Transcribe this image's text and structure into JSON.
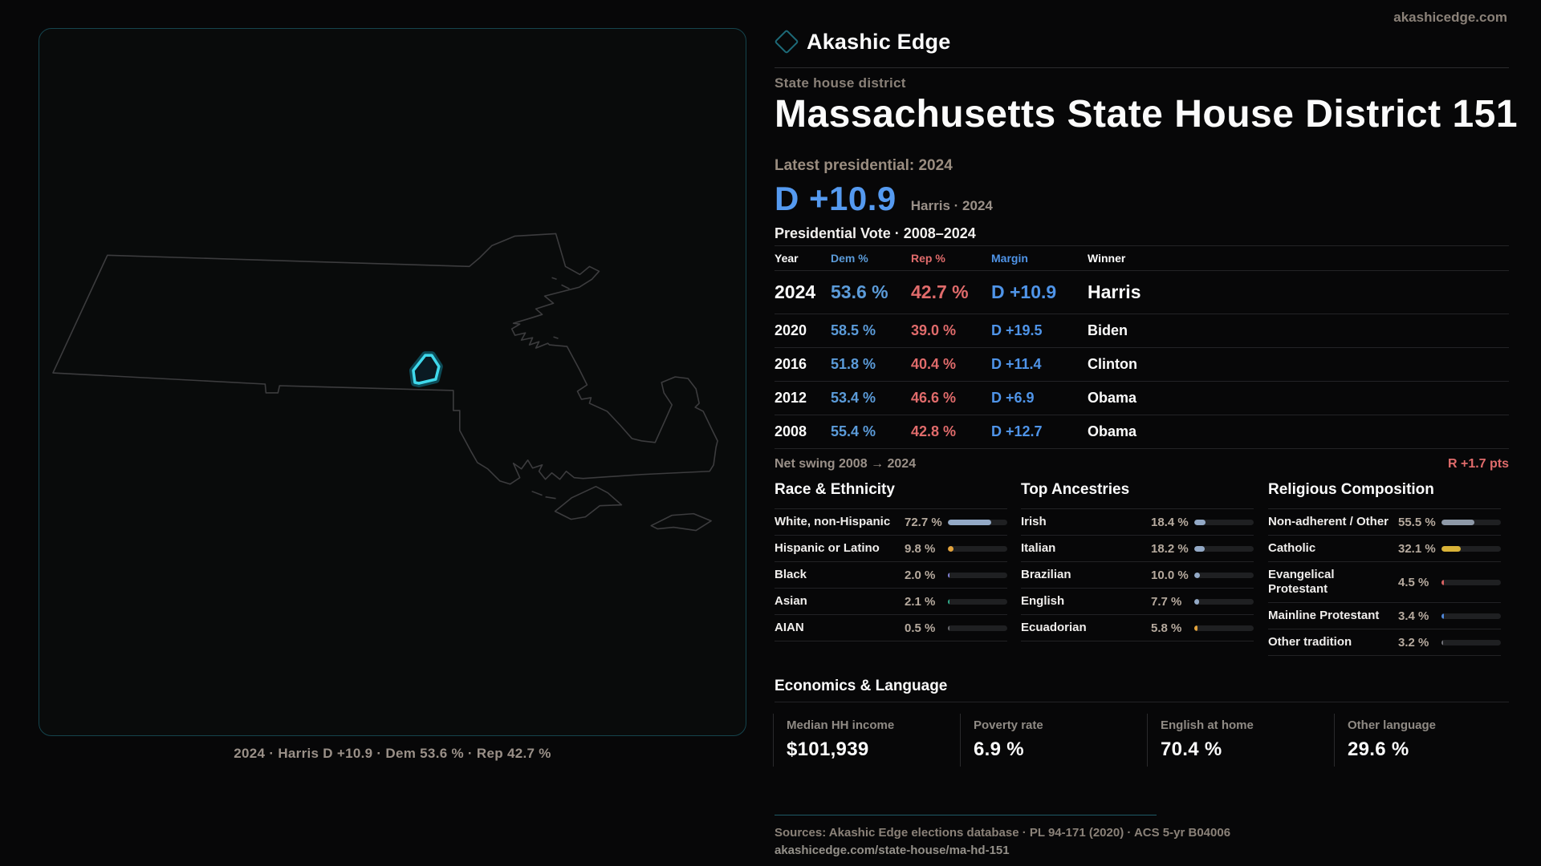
{
  "brand": {
    "name": "Akashic Edge",
    "site": "akashicedge.com",
    "accent": "#1d6a78"
  },
  "header": {
    "kicker": "State house district",
    "title": "Massachusetts State House District 151"
  },
  "hero": {
    "latest_label": "Latest presidential: 2024",
    "margin": "D +10.9",
    "margin_color": "#559af0",
    "note": "Harris · 2024"
  },
  "vote_table": {
    "title": "Presidential Vote · 2008–2024",
    "columns": [
      "Year",
      "Dem %",
      "Rep %",
      "Margin",
      "Winner"
    ],
    "rows": [
      {
        "year": "2024",
        "dem": "53.6 %",
        "rep": "42.7 %",
        "margin": "D +10.9",
        "winner": "Harris",
        "emphasis": true
      },
      {
        "year": "2020",
        "dem": "58.5 %",
        "rep": "39.0 %",
        "margin": "D +19.5",
        "winner": "Biden",
        "emphasis": false
      },
      {
        "year": "2016",
        "dem": "51.8 %",
        "rep": "40.4 %",
        "margin": "D +11.4",
        "winner": "Clinton",
        "emphasis": false
      },
      {
        "year": "2012",
        "dem": "53.4 %",
        "rep": "46.6 %",
        "margin": "D +6.9",
        "winner": "Obama",
        "emphasis": false
      },
      {
        "year": "2008",
        "dem": "55.4 %",
        "rep": "42.8 %",
        "margin": "D +12.7",
        "winner": "Obama",
        "emphasis": false
      }
    ],
    "dem_color": "#5b9bd9",
    "rep_color": "#e06b6b",
    "margin_color": "#4f94e8"
  },
  "net_swing": {
    "label": "Net swing 2008 → 2024",
    "value": "R +1.7 pts",
    "value_color": "#e06b6b"
  },
  "demographics": {
    "race": {
      "title": "Race & Ethnicity",
      "rows": [
        {
          "label": "White, non-Hispanic",
          "value": "72.7 %",
          "pct": 72.7,
          "color": "#93a9c6"
        },
        {
          "label": "Hispanic or Latino",
          "value": "9.8 %",
          "pct": 9.8,
          "color": "#e3a33c"
        },
        {
          "label": "Black",
          "value": "2.0 %",
          "pct": 2.0,
          "color": "#8383d9"
        },
        {
          "label": "Asian",
          "value": "2.1 %",
          "pct": 2.1,
          "color": "#2fae8c"
        },
        {
          "label": "AIAN",
          "value": "0.5 %",
          "pct": 0.5,
          "color": "#6a6a6e"
        }
      ]
    },
    "ancestries": {
      "title": "Top Ancestries",
      "rows": [
        {
          "label": "Irish",
          "value": "18.4 %",
          "pct": 18.4,
          "color": "#93a9c6"
        },
        {
          "label": "Italian",
          "value": "18.2 %",
          "pct": 18.2,
          "color": "#93a9c6"
        },
        {
          "label": "Brazilian",
          "value": "10.0 %",
          "pct": 10.0,
          "color": "#93a9c6"
        },
        {
          "label": "English",
          "value": "7.7 %",
          "pct": 7.7,
          "color": "#93a9c6"
        },
        {
          "label": "Ecuadorian",
          "value": "5.8 %",
          "pct": 5.8,
          "color": "#e3a33c"
        }
      ]
    },
    "religion": {
      "title": "Religious Composition",
      "rows": [
        {
          "label": "Non-adherent / Other",
          "value": "55.5 %",
          "pct": 55.5,
          "color": "#8e99a8"
        },
        {
          "label": "Catholic",
          "value": "32.1 %",
          "pct": 32.1,
          "color": "#d9b338"
        },
        {
          "label": "Evangelical Protestant",
          "value": "4.5 %",
          "pct": 4.5,
          "color": "#d96262"
        },
        {
          "label": "Mainline Protestant",
          "value": "3.4 %",
          "pct": 3.4,
          "color": "#4f87d9"
        },
        {
          "label": "Other tradition",
          "value": "3.2 %",
          "pct": 3.2,
          "color": "#73737a"
        }
      ]
    }
  },
  "economics": {
    "title": "Economics & Language",
    "stats": [
      {
        "label": "Median HH income",
        "value": "$101,939"
      },
      {
        "label": "Poverty rate",
        "value": "6.9 %"
      },
      {
        "label": "English at home",
        "value": "70.4 %"
      },
      {
        "label": "Other language",
        "value": "29.6 %"
      }
    ]
  },
  "footer": {
    "sources": "Sources: Akashic Edge elections database · PL 94-171 (2020) · ACS 5-yr B04006",
    "permalink": "akashicedge.com/state-house/ma-hd-151"
  },
  "map": {
    "caption": "2024 · Harris D +10.9 · Dem 53.6 % · Rep 42.7 %",
    "district_color": "#3fd9ec",
    "outline_color": "#3c3c3e",
    "panel_border_color": "#15444d"
  }
}
